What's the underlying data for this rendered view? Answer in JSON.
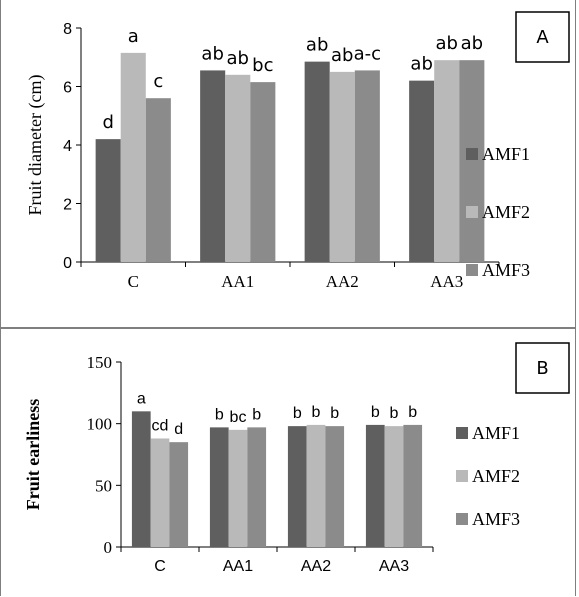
{
  "chart_data": [
    {
      "panel": "A",
      "type": "bar",
      "ylabel": "Fruit diameter (cm)",
      "ylim": [
        0,
        8
      ],
      "yticks": [
        "0",
        "2",
        "4",
        "6",
        "8"
      ],
      "categories": [
        "C",
        "AA1",
        "AA2",
        "AA3"
      ],
      "series": [
        {
          "name": "AMF1",
          "values": [
            4.2,
            6.55,
            6.85,
            6.2
          ]
        },
        {
          "name": "AMF2",
          "values": [
            7.15,
            6.4,
            6.5,
            6.9
          ]
        },
        {
          "name": "AMF3",
          "values": [
            5.6,
            6.15,
            6.55,
            6.9
          ]
        }
      ],
      "bar_labels": [
        [
          "d",
          "a",
          "c"
        ],
        [
          "ab",
          "ab",
          "bc"
        ],
        [
          "ab",
          "ab",
          "a-c"
        ],
        [
          "ab",
          "ab",
          "ab"
        ]
      ],
      "legend": "right",
      "grid": false
    },
    {
      "panel": "B",
      "type": "bar",
      "ylabel": "Fruit earliness",
      "ylim": [
        0,
        150
      ],
      "yticks": [
        "0",
        "50",
        "100",
        "150"
      ],
      "categories": [
        "C",
        "AA1",
        "AA2",
        "AA3"
      ],
      "series": [
        {
          "name": "AMF1",
          "values": [
            110,
            97,
            98,
            99
          ]
        },
        {
          "name": "AMF2",
          "values": [
            88,
            95,
            99,
            98
          ]
        },
        {
          "name": "AMF3",
          "values": [
            85,
            97,
            98,
            99
          ]
        }
      ],
      "bar_labels": [
        [
          "a",
          "cd",
          "d"
        ],
        [
          "b",
          "bc",
          "b"
        ],
        [
          "b",
          "b",
          "b"
        ],
        [
          "b",
          "b",
          "b"
        ]
      ],
      "legend": "right",
      "grid": false
    }
  ],
  "colors": {
    "AMF1": "#5f5f5f",
    "AMF2": "#b9b9b9",
    "AMF3": "#8b8b8b"
  }
}
